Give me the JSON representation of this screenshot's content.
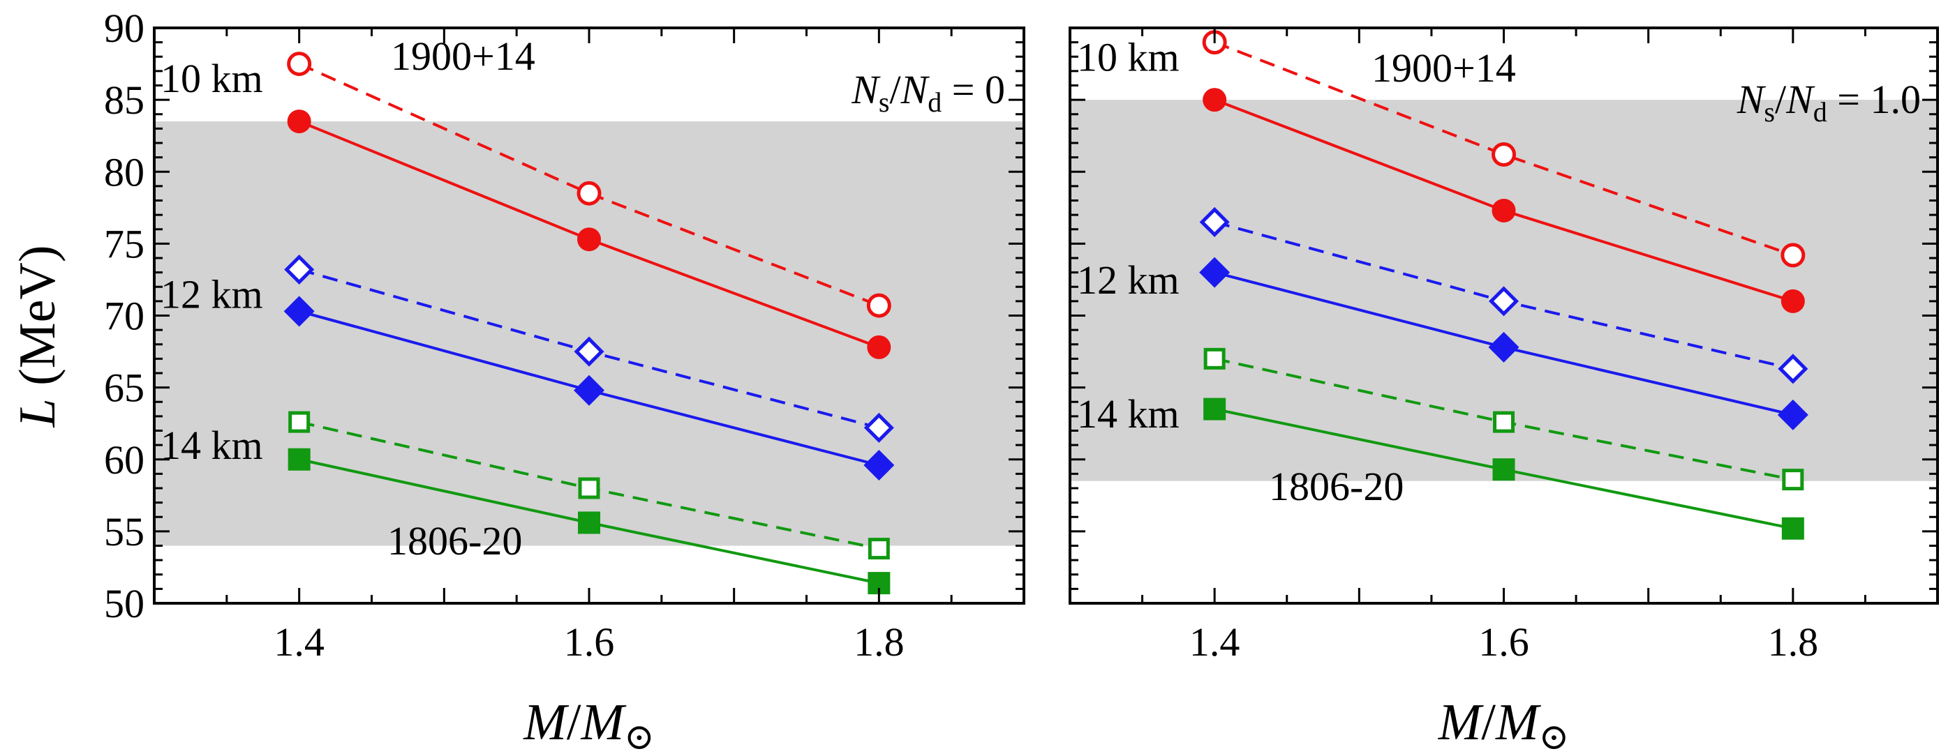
{
  "figure": {
    "ylabel_italic": "L",
    "ylabel_unit": " (MeV)",
    "xlabel_italic_M": "M",
    "xlabel_slash": "/",
    "xlabel_italic_Msun": "M",
    "xlabel_sun_symbol": "⊙"
  },
  "colors": {
    "red": "#ee1111",
    "blue": "#1a1aee",
    "green": "#119911",
    "band": "#d3d3d3",
    "axes": "#000000"
  },
  "chart_data": [
    {
      "type": "line",
      "panel": "left",
      "annotation": {
        "N": "N",
        "sub_s": "s",
        "slash": "/",
        "sub_d": "d",
        "eq": " = 0"
      },
      "band": {
        "range": [
          54,
          83.5
        ],
        "labels": {
          "upper": "1900+14",
          "lower": "1806-20"
        }
      },
      "xlim": [
        1.3,
        1.9
      ],
      "ylim": [
        50,
        90
      ],
      "xticks": [
        1.4,
        1.6,
        1.8
      ],
      "xtick_labels": [
        "1.4",
        "1.6",
        "1.8"
      ],
      "yticks": [
        50,
        55,
        60,
        65,
        70,
        75,
        80,
        85,
        90
      ],
      "ytick_labels": [
        "50",
        "55",
        "60",
        "65",
        "70",
        "75",
        "80",
        "85",
        "90"
      ],
      "radius_labels": [
        {
          "text": "10 km",
          "y": 86.5
        },
        {
          "text": "12 km",
          "y": 71.5
        },
        {
          "text": "14 km",
          "y": 61
        }
      ],
      "series": [
        {
          "name": "10 km dashed",
          "color": "red",
          "marker": "circle",
          "filled": false,
          "dashed": true,
          "x": [
            1.4,
            1.6,
            1.8
          ],
          "y": [
            87.5,
            78.5,
            70.7
          ]
        },
        {
          "name": "10 km solid",
          "color": "red",
          "marker": "circle",
          "filled": true,
          "dashed": false,
          "x": [
            1.4,
            1.6,
            1.8
          ],
          "y": [
            83.5,
            75.3,
            67.8
          ]
        },
        {
          "name": "12 km dashed",
          "color": "blue",
          "marker": "diamond",
          "filled": false,
          "dashed": true,
          "x": [
            1.4,
            1.6,
            1.8
          ],
          "y": [
            73.2,
            67.5,
            62.2
          ]
        },
        {
          "name": "12 km solid",
          "color": "blue",
          "marker": "diamond",
          "filled": true,
          "dashed": false,
          "x": [
            1.4,
            1.6,
            1.8
          ],
          "y": [
            70.3,
            64.8,
            59.6
          ]
        },
        {
          "name": "14 km dashed",
          "color": "green",
          "marker": "square",
          "filled": false,
          "dashed": true,
          "x": [
            1.4,
            1.6,
            1.8
          ],
          "y": [
            62.6,
            58.0,
            53.8
          ]
        },
        {
          "name": "14 km solid",
          "color": "green",
          "marker": "square",
          "filled": true,
          "dashed": false,
          "x": [
            1.4,
            1.6,
            1.8
          ],
          "y": [
            60.0,
            55.6,
            51.4
          ]
        }
      ]
    },
    {
      "type": "line",
      "panel": "right",
      "annotation": {
        "N": "N",
        "sub_s": "s",
        "slash": "/",
        "sub_d": "d",
        "eq": " = 1.0"
      },
      "band": {
        "range": [
          58.5,
          85
        ],
        "labels": {
          "upper": "1900+14",
          "lower": "1806-20"
        }
      },
      "xlim": [
        1.3,
        1.9
      ],
      "ylim": [
        50,
        90
      ],
      "xticks": [
        1.4,
        1.6,
        1.8
      ],
      "xtick_labels": [
        "1.4",
        "1.6",
        "1.8"
      ],
      "yticks": [
        50,
        55,
        60,
        65,
        70,
        75,
        80,
        85,
        90
      ],
      "ytick_labels": [],
      "radius_labels": [
        {
          "text": "10 km",
          "y": 88
        },
        {
          "text": "12 km",
          "y": 72.5
        },
        {
          "text": "14 km",
          "y": 63.2
        }
      ],
      "series": [
        {
          "name": "10 km dashed",
          "color": "red",
          "marker": "circle",
          "filled": false,
          "dashed": true,
          "x": [
            1.4,
            1.6,
            1.8
          ],
          "y": [
            89.0,
            81.2,
            74.2
          ]
        },
        {
          "name": "10 km solid",
          "color": "red",
          "marker": "circle",
          "filled": true,
          "dashed": false,
          "x": [
            1.4,
            1.6,
            1.8
          ],
          "y": [
            85.0,
            77.3,
            71.0
          ]
        },
        {
          "name": "12 km dashed",
          "color": "blue",
          "marker": "diamond",
          "filled": false,
          "dashed": true,
          "x": [
            1.4,
            1.6,
            1.8
          ],
          "y": [
            76.5,
            71.0,
            66.3
          ]
        },
        {
          "name": "12 km solid",
          "color": "blue",
          "marker": "diamond",
          "filled": true,
          "dashed": false,
          "x": [
            1.4,
            1.6,
            1.8
          ],
          "y": [
            73.0,
            67.8,
            63.1
          ]
        },
        {
          "name": "14 km dashed",
          "color": "green",
          "marker": "square",
          "filled": false,
          "dashed": true,
          "x": [
            1.4,
            1.6,
            1.8
          ],
          "y": [
            67.0,
            62.6,
            58.6
          ]
        },
        {
          "name": "14 km solid",
          "color": "green",
          "marker": "square",
          "filled": true,
          "dashed": false,
          "x": [
            1.4,
            1.6,
            1.8
          ],
          "y": [
            63.5,
            59.3,
            55.2
          ]
        }
      ]
    }
  ]
}
